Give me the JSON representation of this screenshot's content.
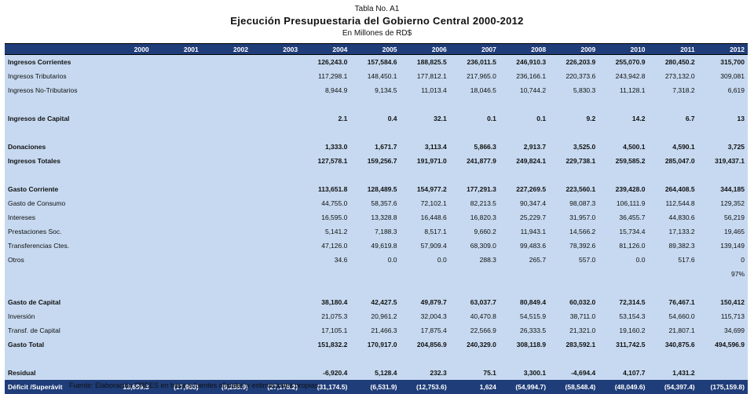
{
  "header": {
    "table_no": "Tabla No. A1",
    "title": "Ejecución Presupuestaria del Gobierno Central 2000-2012",
    "subtitle": "En Millones de RD$"
  },
  "table": {
    "columns": [
      "2000",
      "2001",
      "2002",
      "2003",
      "2004",
      "2005",
      "2006",
      "2007",
      "2008",
      "2009",
      "2010",
      "2011",
      "2012"
    ],
    "sections": [
      [
        {
          "label": "Ingresos Corrientes",
          "cells": [
            null,
            null,
            null,
            null,
            "126,243.0",
            "157,584.6",
            "188,825.5",
            "236,011.5",
            "246,910.3",
            "226,203.9",
            "255,070.9",
            "280,450.2",
            "315,700"
          ]
        },
        {
          "label": "Ingresos Tributarios",
          "cells": [
            null,
            null,
            null,
            null,
            "117,298.1",
            "148,450.1",
            "177,812.1",
            "217,965.0",
            "236,166.1",
            "220,373.6",
            "243,942.8",
            "273,132.0",
            "309,081"
          ]
        },
        {
          "label": "Ingresos No-Tributarios",
          "cells": [
            null,
            null,
            null,
            null,
            "8,944.9",
            "9,134.5",
            "11,013.4",
            "18,046.5",
            "10,744.2",
            "5,830.3",
            "11,128.1",
            "7,318.2",
            "6,619"
          ]
        }
      ],
      [
        {
          "label": "Ingresos de Capital",
          "cells": [
            null,
            null,
            null,
            null,
            "2.1",
            "0.4",
            "32.1",
            "0.1",
            "0.1",
            "9.2",
            "14.2",
            "6.7",
            "13"
          ]
        }
      ],
      [
        {
          "label": "Donaciones",
          "cells": [
            null,
            null,
            null,
            null,
            "1,333.0",
            "1,671.7",
            "3,113.4",
            "5,866.3",
            "2,913.7",
            "3,525.0",
            "4,500.1",
            "4,590.1",
            "3,725"
          ]
        },
        {
          "label": "Ingresos Totales",
          "cells": [
            null,
            null,
            null,
            null,
            "127,578.1",
            "159,256.7",
            "191,971.0",
            "241,877.9",
            "249,824.1",
            "229,738.1",
            "259,585.2",
            "285,047.0",
            "319,437.1"
          ]
        }
      ],
      [
        {
          "label": "Gasto Corriente",
          "cells": [
            null,
            null,
            null,
            null,
            "113,651.8",
            "128,489.5",
            "154,977.2",
            "177,291.3",
            "227,269.5",
            "223,560.1",
            "239,428.0",
            "264,408.5",
            "344,185"
          ]
        },
        {
          "label": "Gasto de Consumo",
          "cells": [
            null,
            null,
            null,
            null,
            "44,755.0",
            "58,357.6",
            "72,102.1",
            "82,213.5",
            "90,347.4",
            "98,087.3",
            "106,111.9",
            "112,544.8",
            "129,352"
          ]
        },
        {
          "label": "Intereses",
          "cells": [
            null,
            null,
            null,
            null,
            "16,595.0",
            "13,328.8",
            "16,448.6",
            "16,820.3",
            "25,229.7",
            "31,957.0",
            "36,455.7",
            "44,830.6",
            "56,219"
          ]
        },
        {
          "label": "Prestaciones Soc.",
          "cells": [
            null,
            null,
            null,
            null,
            "5,141.2",
            "7,188.3",
            "8,517.1",
            "9,660.2",
            "11,943.1",
            "14,566.2",
            "15,734.4",
            "17,133.2",
            "19,465"
          ]
        },
        {
          "label": "Transferencias Ctes.",
          "cells": [
            null,
            null,
            null,
            null,
            "47,126.0",
            "49,619.8",
            "57,909.4",
            "68,309.0",
            "99,483.6",
            "78,392.6",
            "81,126.0",
            "89,382.3",
            "139,149"
          ]
        },
        {
          "label": "Otros",
          "cells": [
            null,
            null,
            null,
            null,
            "34.6",
            "0.0",
            "0.0",
            "288.3",
            "265.7",
            "557.0",
            "0.0",
            "517.6",
            "0"
          ]
        },
        {
          "label": null,
          "cells": [
            null,
            null,
            null,
            null,
            null,
            null,
            null,
            null,
            null,
            null,
            null,
            null,
            "97%"
          ]
        }
      ],
      [
        {
          "label": "Gasto de Capital",
          "cells": [
            null,
            null,
            null,
            null,
            "38,180.4",
            "42,427.5",
            "49,879.7",
            "63,037.7",
            "80,849.4",
            "60,032.0",
            "72,314.5",
            "76,467.1",
            "150,412"
          ]
        },
        {
          "label": "Inversión",
          "cells": [
            null,
            null,
            null,
            null,
            "21,075.3",
            "20,961.2",
            "32,004.3",
            "40,470.8",
            "54,515.9",
            "38,711.0",
            "53,154.3",
            "54,660.0",
            "115,713"
          ]
        },
        {
          "label": "Transf. de Capital",
          "cells": [
            null,
            null,
            null,
            null,
            "17,105.1",
            "21,466.3",
            "17,875.4",
            "22,566.9",
            "26,333.5",
            "21,321.0",
            "19,160.2",
            "21,807.1",
            "34,699"
          ]
        },
        {
          "label": "Gasto Total",
          "cells": [
            null,
            null,
            null,
            null,
            "151,832.2",
            "170,917.0",
            "204,856.9",
            "240,329.0",
            "308,118.9",
            "283,592.1",
            "311,742.5",
            "340,875.6",
            "494,596.9"
          ]
        }
      ],
      [
        {
          "label": "Residual",
          "cells": [
            null,
            null,
            null,
            null,
            "-6,920.4",
            "5,128.4",
            "232.3",
            "75.1",
            "3,300.1",
            "-4,694.4",
            "4,107.7",
            "1,431.2",
            null
          ]
        }
      ]
    ],
    "total_row": {
      "label": "Déficit /Superávit",
      "cells": [
        "13,699.3",
        "(17,963)",
        "(9,255.9)",
        "(27,178.2)",
        "(31,174.5)",
        "(6,531.9)",
        "(12,753.6)",
        "1,624",
        "(54,994.7)",
        "(58,548.4)",
        "(48,049.6)",
        "(54,397.4)",
        "(175,159.8)"
      ]
    }
  },
  "footer": {
    "source": "Fuente: Elaboración CREES en base a fuentes oficiales y estimaciones propias."
  }
}
